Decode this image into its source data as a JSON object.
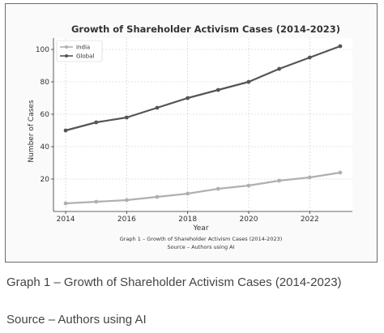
{
  "caption": {
    "line1": "Graph 1 – Growth of Shareholder Activism Cases (2014-2023)",
    "line2": "Source – Authors using AI"
  },
  "chart_data": {
    "type": "line",
    "title": "Growth of Shareholder Activism Cases (2014-2023)",
    "xlabel": "Year",
    "ylabel": "Number of Cases",
    "x": [
      2014,
      2015,
      2016,
      2017,
      2018,
      2019,
      2020,
      2021,
      2022,
      2023
    ],
    "xticks": [
      2014,
      2016,
      2018,
      2020,
      2022
    ],
    "yticks": [
      20,
      40,
      60,
      80,
      100
    ],
    "xlim": [
      2013.6,
      2023.4
    ],
    "ylim": [
      0,
      107
    ],
    "grid": true,
    "legend": "top-left",
    "series": [
      {
        "name": "India",
        "values": [
          5,
          6,
          7,
          9,
          11,
          14,
          16,
          19,
          21,
          24
        ],
        "color": "#b0b0b0"
      },
      {
        "name": "Global",
        "values": [
          50,
          55,
          58,
          64,
          70,
          75,
          80,
          88,
          95,
          102
        ],
        "color": "#555555"
      }
    ],
    "inner_caption": [
      "Graph 1 – Growth of Shareholder Activism Cases (2014-2023)",
      "Source – Authors using AI"
    ]
  }
}
